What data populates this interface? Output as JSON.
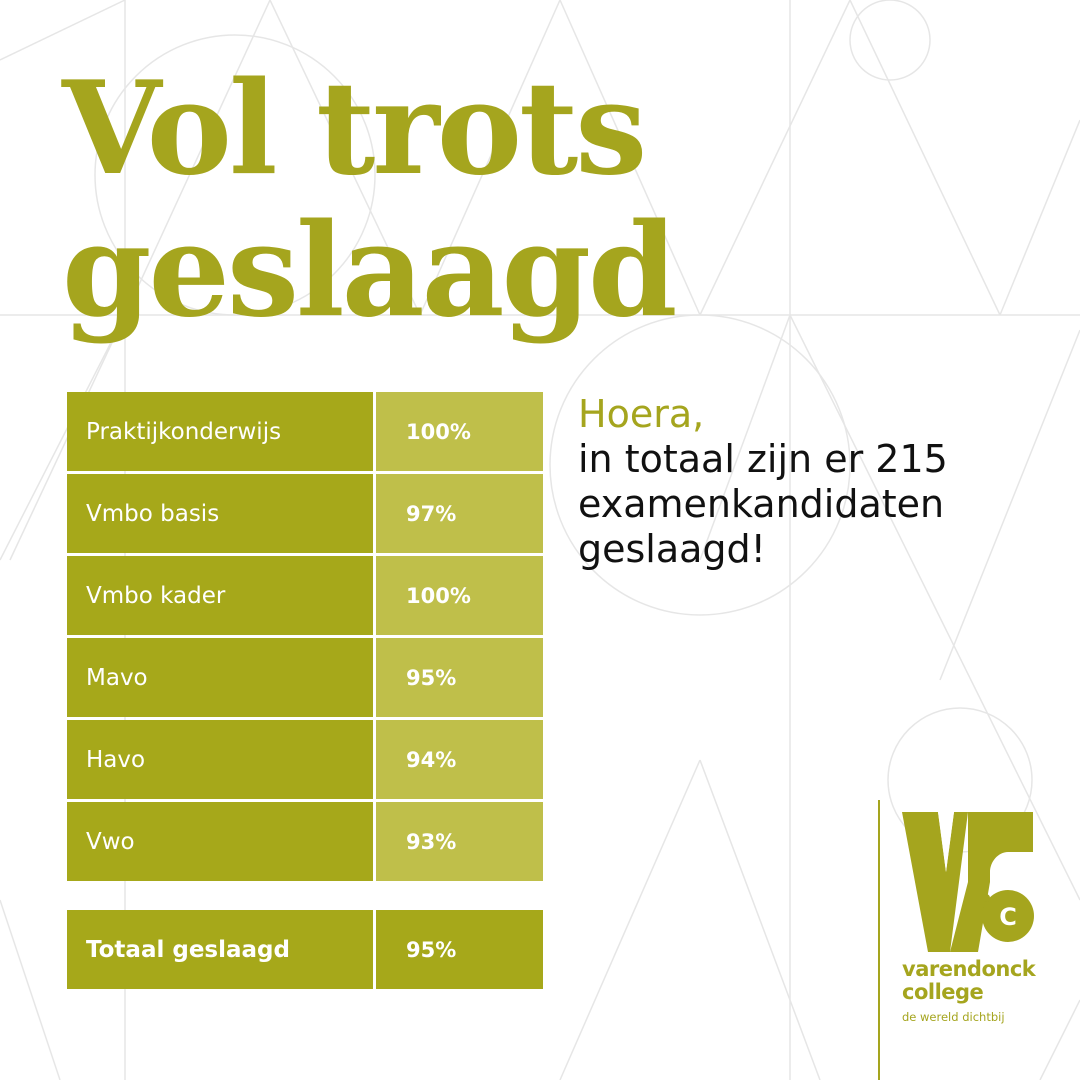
{
  "headline": {
    "line1": "Vol trots",
    "line2": "geslaagd"
  },
  "results": [
    {
      "label": "Praktijkonderwijs",
      "value": "100%"
    },
    {
      "label": "Vmbo basis",
      "value": "97%"
    },
    {
      "label": "Vmbo kader",
      "value": "100%"
    },
    {
      "label": "Mavo",
      "value": "95%"
    },
    {
      "label": "Havo",
      "value": "94%"
    },
    {
      "label": "Vwo",
      "value": "93%"
    }
  ],
  "total": {
    "label": "Totaal geslaagd",
    "value": "95%"
  },
  "message": {
    "greeting": "Hoera,",
    "lines": [
      "in totaal zijn er 215",
      "examenkandidaten",
      "geslaagd!"
    ]
  },
  "logo": {
    "name_line1": "varendonck",
    "name_line2": "college",
    "tagline": "de wereld dichtbij",
    "mark_text": "C"
  },
  "colors": {
    "brand": "#a5a51e",
    "label_cell": "#a6a81a",
    "value_cell": "#bfbf4a",
    "text_dark": "#111111"
  }
}
